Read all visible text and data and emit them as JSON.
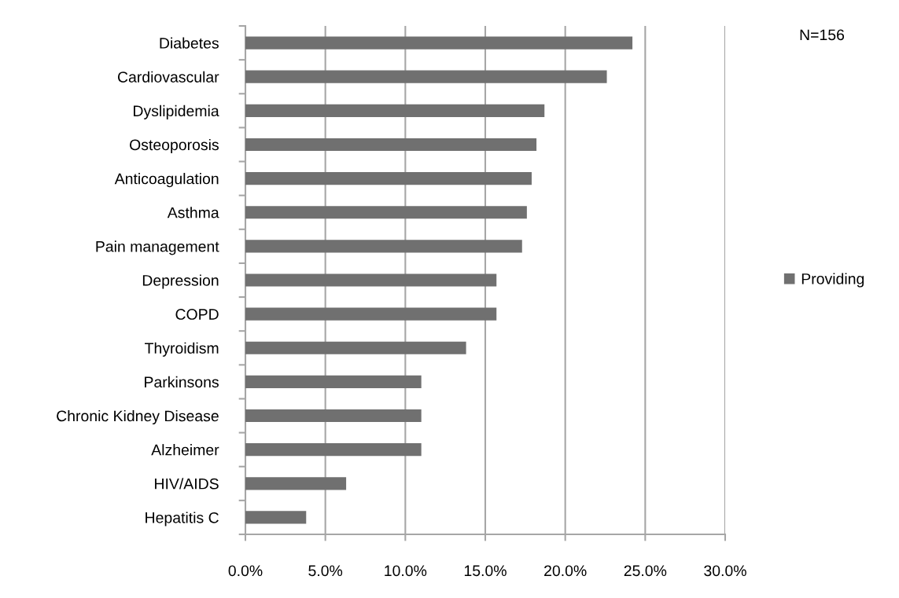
{
  "chart_data": {
    "type": "bar",
    "orientation": "horizontal",
    "categories": [
      "Diabetes",
      "Cardiovascular",
      "Dyslipidemia",
      "Osteoporosis",
      "Anticoagulation",
      "Asthma",
      "Pain management",
      "Depression",
      "COPD",
      "Thyroidism",
      "Parkinsons",
      "Chronic Kidney Disease",
      "Alzheimer",
      "HIV/AIDS",
      "Hepatitis C"
    ],
    "series": [
      {
        "name": "Providing",
        "color": "#707070",
        "values": [
          24.2,
          22.6,
          18.7,
          18.2,
          17.9,
          17.6,
          17.3,
          15.7,
          15.7,
          13.8,
          11.0,
          11.0,
          11.0,
          6.3,
          3.8
        ]
      }
    ],
    "xlim": [
      0,
      30
    ],
    "xticks": [
      {
        "value": 0,
        "label": "0.0%"
      },
      {
        "value": 5,
        "label": "5.0%"
      },
      {
        "value": 10,
        "label": "10.0%"
      },
      {
        "value": 15,
        "label": "15.0%"
      },
      {
        "value": 20,
        "label": "20.0%"
      },
      {
        "value": 25,
        "label": "25.0%"
      },
      {
        "value": 30,
        "label": "30.0%"
      }
    ],
    "grid": "x",
    "legend": "right",
    "annotations": [
      "N=156"
    ]
  }
}
